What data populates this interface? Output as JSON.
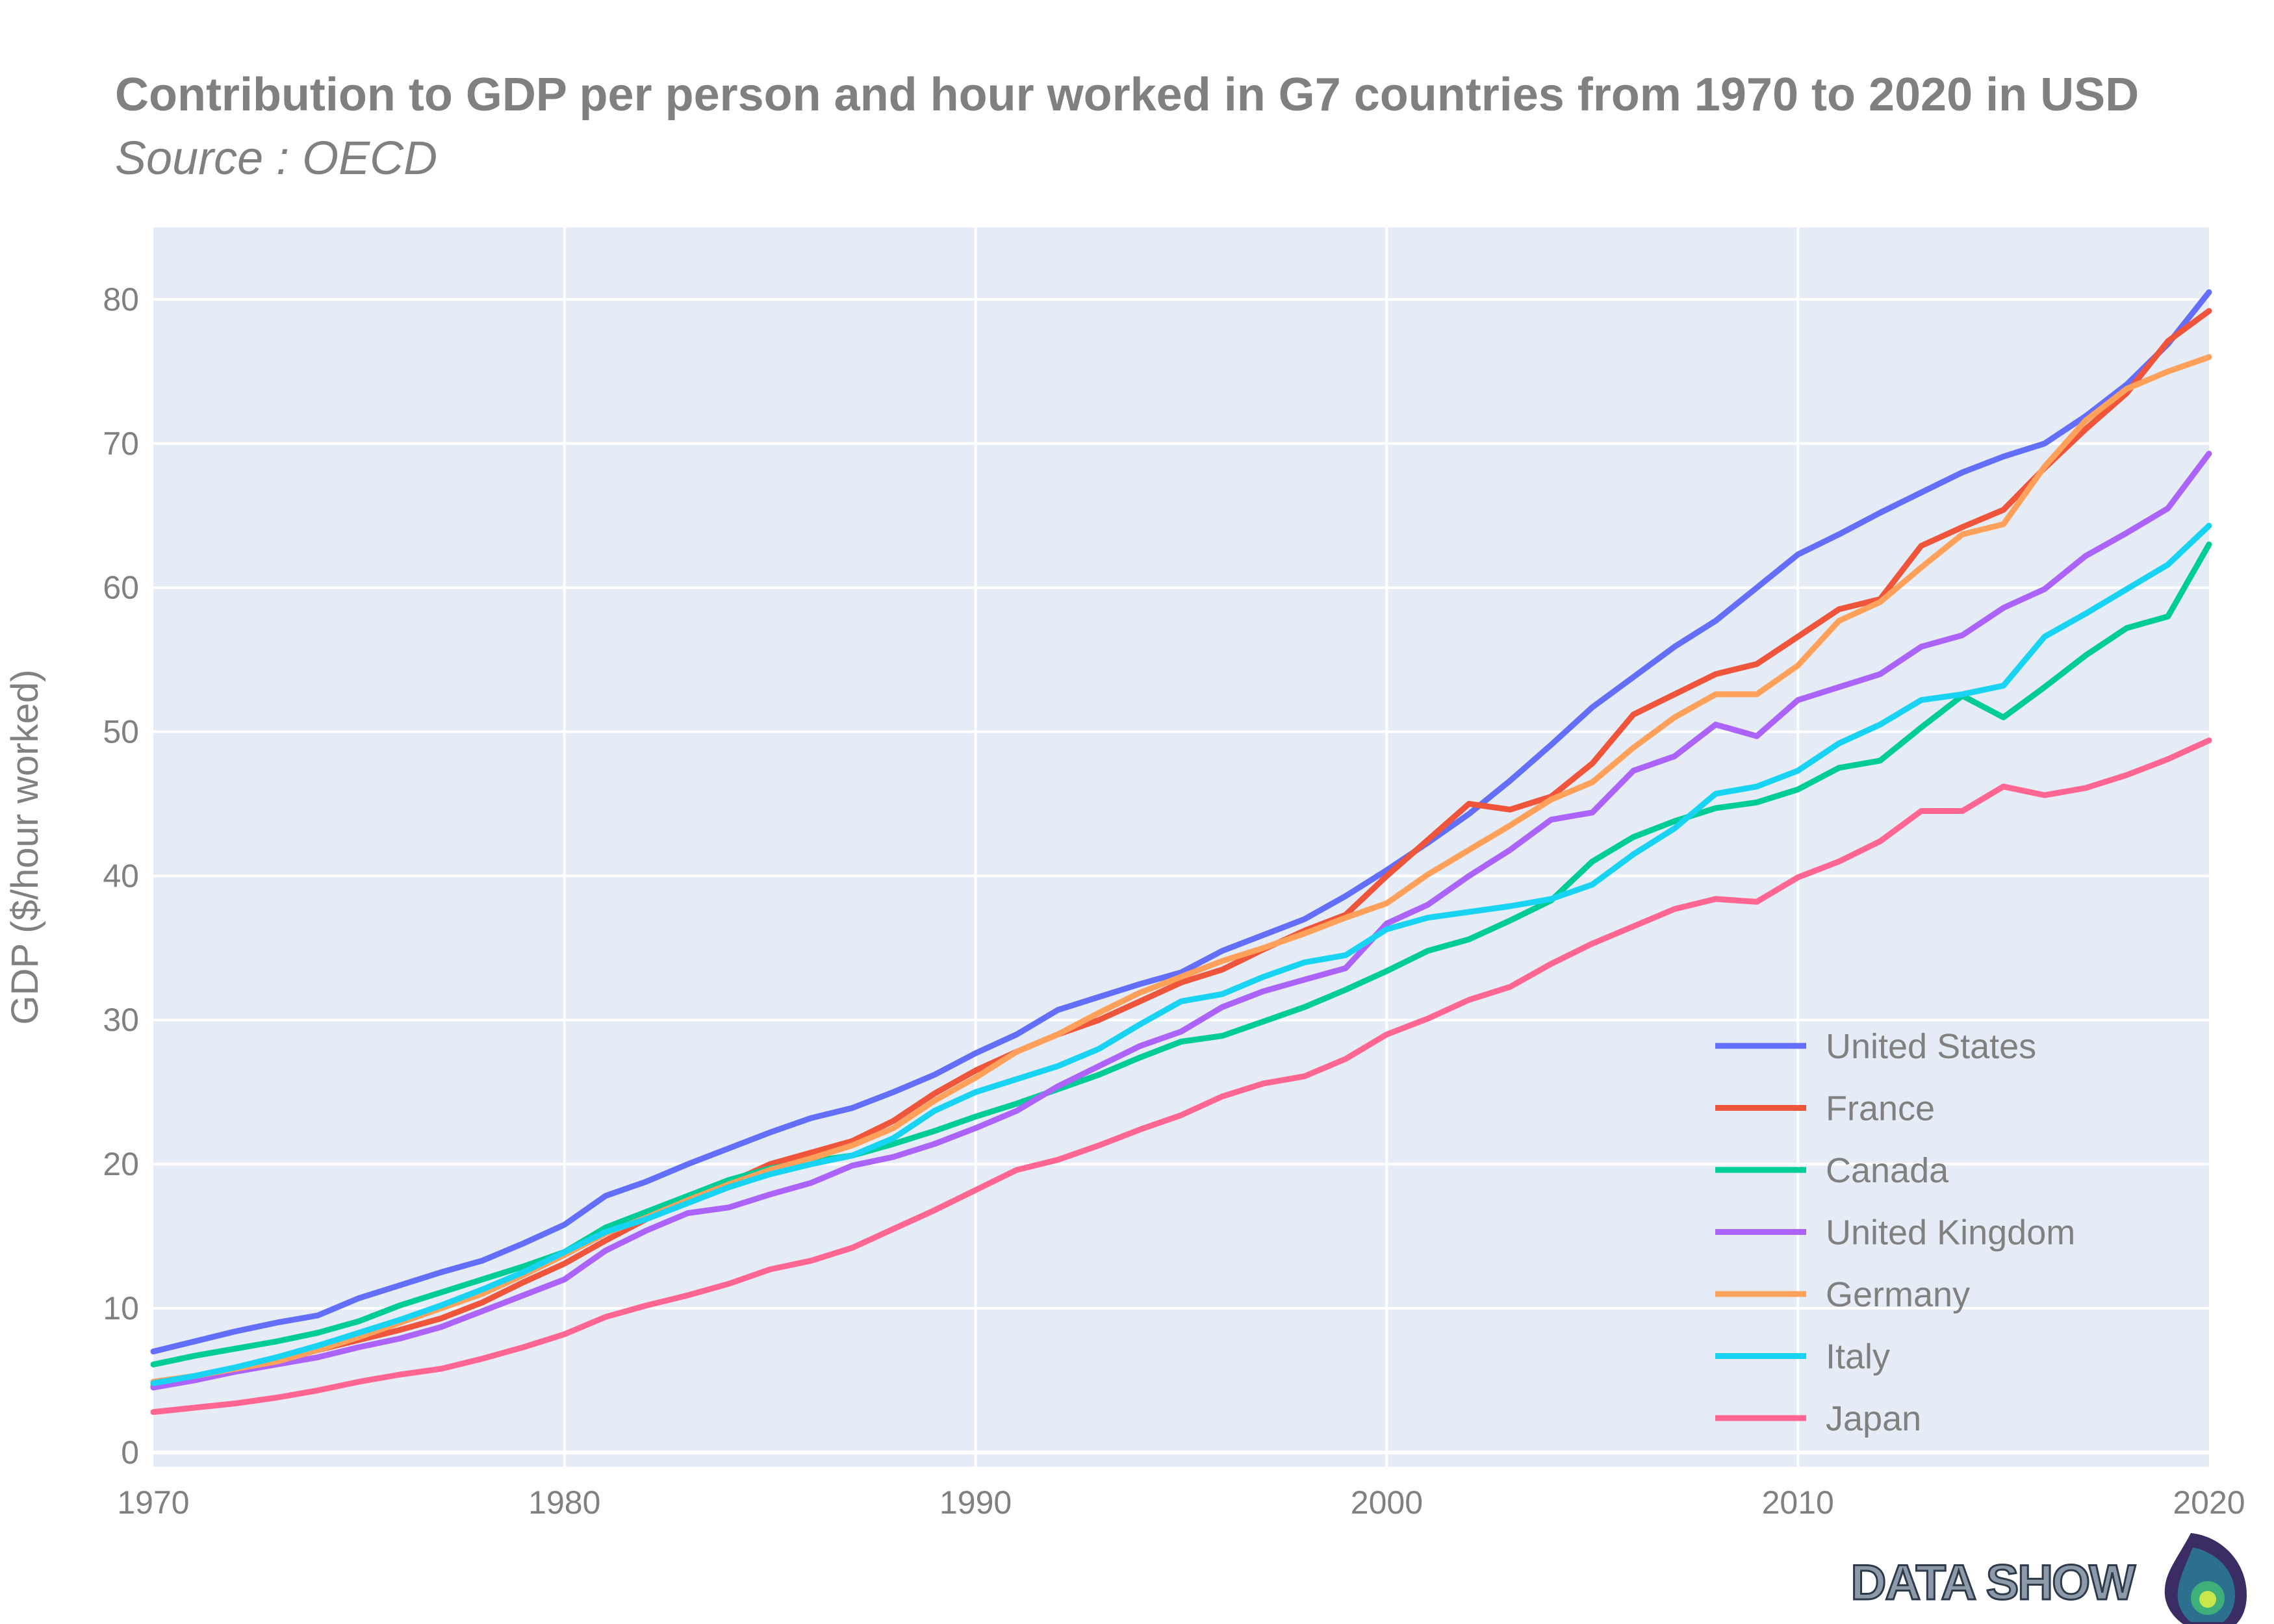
{
  "chart_data": {
    "type": "line",
    "title": "Contribution to GDP per person and hour worked in G7 countries from 1970 to 2020 in USD",
    "subtitle": "Source : OECD",
    "xlabel": "",
    "ylabel": "GDP ($/hour worked)",
    "xlim": [
      1970,
      2020
    ],
    "ylim": [
      -1,
      85
    ],
    "x_ticks": [
      1970,
      1980,
      1990,
      2000,
      2010,
      2020
    ],
    "y_ticks": [
      0,
      10,
      20,
      30,
      40,
      50,
      60,
      70,
      80
    ],
    "grid": true,
    "legend_position": "bottom-right",
    "x": [
      1970,
      1971,
      1972,
      1973,
      1974,
      1975,
      1976,
      1977,
      1978,
      1979,
      1980,
      1981,
      1982,
      1983,
      1984,
      1985,
      1986,
      1987,
      1988,
      1989,
      1990,
      1991,
      1992,
      1993,
      1994,
      1995,
      1996,
      1997,
      1998,
      1999,
      2000,
      2001,
      2002,
      2003,
      2004,
      2005,
      2006,
      2007,
      2008,
      2009,
      2010,
      2011,
      2012,
      2013,
      2014,
      2015,
      2016,
      2017,
      2018,
      2019,
      2020
    ],
    "series": [
      {
        "name": "United States",
        "color": "#636efa",
        "values": [
          7.0,
          7.7,
          8.4,
          9.0,
          9.5,
          10.7,
          11.6,
          12.5,
          13.3,
          14.5,
          15.8,
          17.8,
          18.8,
          20.0,
          21.1,
          22.2,
          23.2,
          23.9,
          25.0,
          26.2,
          27.7,
          29.0,
          30.7,
          31.6,
          32.5,
          33.3,
          34.8,
          35.9,
          37.0,
          38.6,
          40.4,
          42.3,
          44.3,
          46.6,
          49.1,
          51.7,
          53.8,
          55.9,
          57.7,
          60.0,
          62.3,
          63.7,
          65.2,
          66.6,
          68.0,
          69.1,
          70.0,
          71.9,
          74.1,
          76.9,
          80.5
        ]
      },
      {
        "name": "France",
        "color": "#ef553b",
        "values": [
          4.6,
          5.2,
          5.8,
          6.5,
          7.1,
          7.8,
          8.5,
          9.3,
          10.4,
          11.8,
          13.1,
          14.7,
          16.2,
          17.6,
          18.7,
          20.0,
          20.8,
          21.6,
          23.0,
          24.9,
          26.5,
          27.8,
          29.0,
          30.0,
          31.3,
          32.6,
          33.5,
          34.9,
          36.2,
          37.3,
          40.0,
          42.5,
          45.0,
          44.6,
          45.5,
          47.8,
          51.2,
          52.6,
          54.0,
          54.7,
          56.6,
          58.5,
          59.2,
          62.9,
          64.2,
          65.4,
          68.3,
          71.0,
          73.5,
          77.1,
          79.2
        ]
      },
      {
        "name": "Canada",
        "color": "#00cc96",
        "values": [
          6.1,
          6.7,
          7.2,
          7.7,
          8.3,
          9.1,
          10.2,
          11.1,
          12.0,
          12.9,
          13.9,
          15.6,
          16.7,
          17.8,
          18.9,
          19.7,
          20.2,
          20.6,
          21.4,
          22.3,
          23.3,
          24.2,
          25.2,
          26.2,
          27.4,
          28.5,
          28.9,
          29.9,
          30.9,
          32.1,
          33.4,
          34.8,
          35.6,
          36.9,
          38.3,
          41.0,
          42.7,
          43.8,
          44.7,
          45.1,
          46.0,
          47.5,
          48.0,
          50.3,
          52.5,
          51.0,
          53.1,
          55.3,
          57.2,
          58.0,
          63.0
        ]
      },
      {
        "name": "United Kingdom",
        "color": "#ab63fa",
        "values": [
          4.5,
          5.0,
          5.6,
          6.1,
          6.6,
          7.3,
          7.9,
          8.7,
          9.8,
          10.9,
          12.0,
          14.0,
          15.4,
          16.6,
          17.0,
          17.9,
          18.7,
          19.9,
          20.5,
          21.4,
          22.5,
          23.7,
          25.4,
          26.8,
          28.2,
          29.2,
          30.9,
          32.0,
          32.8,
          33.6,
          36.7,
          38.0,
          40.0,
          41.8,
          43.9,
          44.4,
          47.3,
          48.3,
          50.5,
          49.7,
          52.2,
          53.1,
          54.0,
          55.9,
          56.7,
          58.6,
          59.9,
          62.2,
          63.8,
          65.5,
          69.3
        ]
      },
      {
        "name": "Germany",
        "color": "#ffa15a",
        "values": [
          4.9,
          5.3,
          5.8,
          6.3,
          7.1,
          8.0,
          9.0,
          10.0,
          11.0,
          12.3,
          13.7,
          15.2,
          16.3,
          17.5,
          18.6,
          19.6,
          20.4,
          21.3,
          22.5,
          24.4,
          26.0,
          27.8,
          29.0,
          30.5,
          31.9,
          33.0,
          34.1,
          35.0,
          36.0,
          37.1,
          38.1,
          40.1,
          41.8,
          43.5,
          45.3,
          46.5,
          48.9,
          51.0,
          52.6,
          52.6,
          54.6,
          57.7,
          59.0,
          61.4,
          63.7,
          64.4,
          68.4,
          71.6,
          73.8,
          75.0,
          76.0
        ]
      },
      {
        "name": "Italy",
        "color": "#19d3f3",
        "values": [
          4.8,
          5.3,
          5.9,
          6.6,
          7.4,
          8.3,
          9.2,
          10.2,
          11.3,
          12.5,
          13.9,
          15.3,
          16.2,
          17.3,
          18.4,
          19.3,
          20.0,
          20.6,
          21.8,
          23.7,
          25.0,
          25.9,
          26.8,
          28.0,
          29.7,
          31.3,
          31.8,
          33.0,
          34.0,
          34.5,
          36.3,
          37.1,
          37.5,
          37.9,
          38.4,
          39.4,
          41.5,
          43.3,
          45.7,
          46.2,
          47.3,
          49.2,
          50.5,
          52.2,
          52.6,
          53.2,
          56.6,
          58.2,
          59.9,
          61.6,
          64.3
        ]
      },
      {
        "name": "Japan",
        "color": "#ff6692",
        "values": [
          2.8,
          3.1,
          3.4,
          3.8,
          4.3,
          4.9,
          5.4,
          5.8,
          6.5,
          7.3,
          8.2,
          9.4,
          10.2,
          10.9,
          11.7,
          12.7,
          13.3,
          14.2,
          15.5,
          16.8,
          18.2,
          19.6,
          20.3,
          21.3,
          22.4,
          23.4,
          24.7,
          25.6,
          26.1,
          27.3,
          29.0,
          30.1,
          31.4,
          32.3,
          33.9,
          35.3,
          36.5,
          37.7,
          38.4,
          38.2,
          39.9,
          41.0,
          42.4,
          44.5,
          44.5,
          46.2,
          45.6,
          46.1,
          47.0,
          48.1,
          49.4
        ]
      }
    ]
  },
  "logo": {
    "text": "DATA SHOW"
  }
}
